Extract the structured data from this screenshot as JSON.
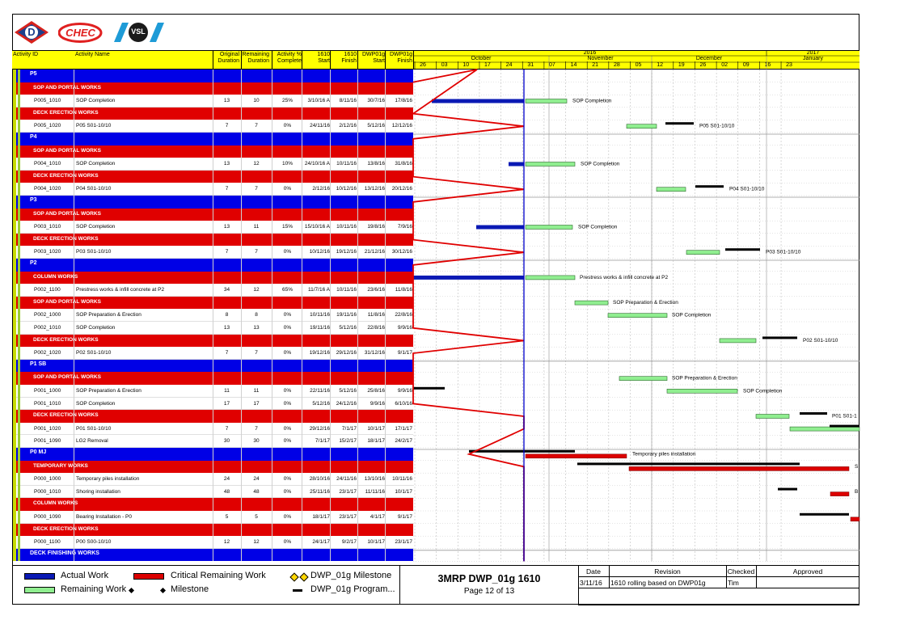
{
  "colors": {
    "header_yellow": "#ffff00",
    "group_blue": "#0000e6",
    "section_red": "#e00000",
    "actual_blue": "#0a19b4",
    "remaining_green": "#90ee90",
    "critical_red": "#dc0000",
    "program_black": "#000000",
    "data_date_line": "#0000cc",
    "progress_line": "#e00000",
    "left_strip": "#c8dc00"
  },
  "logos": {
    "logo1": "D",
    "logo2": "CHEC",
    "logo3": "VSL"
  },
  "columns": {
    "activity_id": "Activity ID",
    "activity_name": "Activity Name",
    "orig_dur_1": "Original",
    "orig_dur_2": "Duration",
    "rem_dur_1": "Remaining",
    "rem_dur_2": "Duration",
    "pct_1": "Activity %",
    "pct_2": "Complete",
    "start_1": "1610",
    "start_2": "Start",
    "finish_1": "1610",
    "finish_2": "Finish",
    "dwp_start_1": "DWP01g",
    "dwp_start_2": "Start",
    "dwp_finish_1": "DWP01g",
    "dwp_finish_2": "Finish"
  },
  "timeline": {
    "years": [
      "2016",
      "2017"
    ],
    "months": [
      "October",
      "November",
      "December",
      "January"
    ],
    "weeks": [
      "26",
      "03",
      "10",
      "17",
      "24",
      "31",
      "07",
      "14",
      "21",
      "28",
      "05",
      "12",
      "19",
      "26",
      "02",
      "09",
      "16",
      "23"
    ]
  },
  "rows": [
    {
      "kind": "group",
      "label": "P5"
    },
    {
      "kind": "section",
      "label": "SOP AND PORTAL WORKS"
    },
    {
      "kind": "activity",
      "id": "P005_1010",
      "name": "SOP Completion",
      "od": "13",
      "rd": "10",
      "pct": "25%",
      "start": "3/10/16 A",
      "finish": "8/11/16",
      "dstart": "30/7/16",
      "dfinish": "17/8/16"
    },
    {
      "kind": "section",
      "label": "DECK ERECTION WORKS"
    },
    {
      "kind": "activity",
      "id": "P005_1020",
      "name": "P05 S01-10/10",
      "od": "7",
      "rd": "7",
      "pct": "0%",
      "start": "24/11/16",
      "finish": "2/12/16",
      "dstart": "5/12/16",
      "dfinish": "12/12/16"
    },
    {
      "kind": "group",
      "label": "P4"
    },
    {
      "kind": "section",
      "label": "SOP AND PORTAL WORKS"
    },
    {
      "kind": "activity",
      "id": "P004_1010",
      "name": "SOP Completion",
      "od": "13",
      "rd": "12",
      "pct": "10%",
      "start": "24/10/16 A",
      "finish": "10/11/16",
      "dstart": "13/8/16",
      "dfinish": "31/8/16"
    },
    {
      "kind": "section",
      "label": "DECK ERECTION WORKS"
    },
    {
      "kind": "activity",
      "id": "P004_1020",
      "name": "P04 S01-10/10",
      "od": "7",
      "rd": "7",
      "pct": "0%",
      "start": "2/12/16",
      "finish": "10/12/16",
      "dstart": "13/12/16",
      "dfinish": "20/12/16"
    },
    {
      "kind": "group",
      "label": "P3"
    },
    {
      "kind": "section",
      "label": "SOP AND PORTAL WORKS"
    },
    {
      "kind": "activity",
      "id": "P003_1010",
      "name": "SOP Completion",
      "od": "13",
      "rd": "11",
      "pct": "15%",
      "start": "15/10/16 A",
      "finish": "10/11/16",
      "dstart": "19/8/16",
      "dfinish": "7/9/16"
    },
    {
      "kind": "section",
      "label": "DECK ERECTION WORKS"
    },
    {
      "kind": "activity",
      "id": "P003_1020",
      "name": "P03 S01-10/10",
      "od": "7",
      "rd": "7",
      "pct": "0%",
      "start": "10/12/16",
      "finish": "19/12/16",
      "dstart": "21/12/16",
      "dfinish": "30/12/16"
    },
    {
      "kind": "group",
      "label": "P2"
    },
    {
      "kind": "section",
      "label": "COLUMN WORKS"
    },
    {
      "kind": "activity",
      "id": "P002_1100",
      "name": "Prestress works & infill concrete at P2",
      "od": "34",
      "rd": "12",
      "pct": "65%",
      "start": "11/7/16 A",
      "finish": "10/11/16",
      "dstart": "23/6/16",
      "dfinish": "11/8/16"
    },
    {
      "kind": "section",
      "label": "SOP AND PORTAL WORKS"
    },
    {
      "kind": "activity",
      "id": "P002_1000",
      "name": "SOP Preparation & Erection",
      "od": "8",
      "rd": "8",
      "pct": "0%",
      "start": "10/11/16",
      "finish": "19/11/16",
      "dstart": "11/8/16",
      "dfinish": "22/8/16"
    },
    {
      "kind": "activity",
      "id": "P002_1010",
      "name": "SOP Completion",
      "od": "13",
      "rd": "13",
      "pct": "0%",
      "start": "19/11/16",
      "finish": "5/12/16",
      "dstart": "22/8/16",
      "dfinish": "9/9/16"
    },
    {
      "kind": "section",
      "label": "DECK ERECTION WORKS"
    },
    {
      "kind": "activity",
      "id": "P002_1020",
      "name": "P02 S01-10/10",
      "od": "7",
      "rd": "7",
      "pct": "0%",
      "start": "19/12/16",
      "finish": "29/12/16",
      "dstart": "31/12/16",
      "dfinish": "9/1/17"
    },
    {
      "kind": "group",
      "label": "P1 SB"
    },
    {
      "kind": "section",
      "label": "SOP AND PORTAL WORKS"
    },
    {
      "kind": "activity",
      "id": "P001_1000",
      "name": "SOP Preparation & Erection",
      "od": "11",
      "rd": "11",
      "pct": "0%",
      "start": "22/11/16",
      "finish": "5/12/16",
      "dstart": "25/8/16",
      "dfinish": "9/9/16"
    },
    {
      "kind": "activity",
      "id": "P001_1010",
      "name": "SOP Completion",
      "od": "17",
      "rd": "17",
      "pct": "0%",
      "start": "5/12/16",
      "finish": "24/12/16",
      "dstart": "9/9/16",
      "dfinish": "6/10/16"
    },
    {
      "kind": "section",
      "label": "DECK ERECTION WORKS"
    },
    {
      "kind": "activity",
      "id": "P001_1020",
      "name": "P01 S01-10/10",
      "od": "7",
      "rd": "7",
      "pct": "0%",
      "start": "29/12/16",
      "finish": "7/1/17",
      "dstart": "10/1/17",
      "dfinish": "17/1/17"
    },
    {
      "kind": "activity",
      "id": "P001_1090",
      "name": "LG2 Removal",
      "od": "30",
      "rd": "30",
      "pct": "0%",
      "start": "7/1/17",
      "finish": "15/2/17",
      "dstart": "18/1/17",
      "dfinish": "24/2/17"
    },
    {
      "kind": "group",
      "label": "P0 MJ"
    },
    {
      "kind": "section",
      "label": "TEMPORARY WORKS"
    },
    {
      "kind": "activity",
      "id": "P000_1000",
      "name": "Temporary piles installation",
      "od": "24",
      "rd": "24",
      "pct": "0%",
      "start": "28/10/16",
      "finish": "24/11/16",
      "dstart": "13/10/16",
      "dfinish": "10/11/16"
    },
    {
      "kind": "activity",
      "id": "P000_1010",
      "name": "Shoring installation",
      "od": "48",
      "rd": "48",
      "pct": "0%",
      "start": "25/11/16",
      "finish": "23/1/17",
      "dstart": "11/11/16",
      "dfinish": "10/1/17"
    },
    {
      "kind": "section",
      "label": "COLUMN WORKS"
    },
    {
      "kind": "activity",
      "id": "P000_1090",
      "name": "Bearing Installation - P0",
      "od": "5",
      "rd": "5",
      "pct": "0%",
      "start": "18/1/17",
      "finish": "23/1/17",
      "dstart": "4/1/17",
      "dfinish": "9/1/17"
    },
    {
      "kind": "section",
      "label": "DECK ERECTION WORKS"
    },
    {
      "kind": "activity",
      "id": "P000_1100",
      "name": "P00 S00-10/10",
      "od": "12",
      "rd": "12",
      "pct": "0%",
      "start": "24/1/17",
      "finish": "9/2/17",
      "dstart": "10/1/17",
      "dfinish": "23/1/17"
    },
    {
      "kind": "group",
      "label": "DECK FINISHING WORKS"
    }
  ],
  "bar_labels": [
    {
      "text": "SOP Completion"
    },
    {
      "text": "P05 S01-10/10"
    },
    {
      "text": "SOP Completion"
    },
    {
      "text": "P04 S01-10/10"
    },
    {
      "text": "SOP Completion"
    },
    {
      "text": "P03 S01-10/10"
    },
    {
      "text": "Prestress works & infill concrete at P2"
    },
    {
      "text": "SOP Preparation & Erection"
    },
    {
      "text": "SOP Completion"
    },
    {
      "text": "P02 S01-10/10"
    },
    {
      "text": "SOP Preparation & Erection"
    },
    {
      "text": "SOP Completion"
    },
    {
      "text": "P01 S01-1"
    },
    {
      "text": "Temporary piles installation"
    },
    {
      "text": "S"
    },
    {
      "text": "B"
    }
  ],
  "legend": {
    "actual_work": "Actual Work",
    "critical_remaining": "Critical Remaining Work",
    "dwp_milestone": "DWP_01g Milestone",
    "remaining_work": "Remaining Work",
    "milestone": "Milestone",
    "dwp_program": "DWP_01g Program..."
  },
  "title_block": {
    "title": "3MRP DWP_01g 1610",
    "page": "Page 12 of 13"
  },
  "revision_table": {
    "headers": [
      "Date",
      "Revision",
      "Checked",
      "Approved"
    ],
    "rows": [
      [
        "3/11/16",
        "1610 rolling based on DWP01g",
        "Tim",
        ""
      ]
    ]
  }
}
